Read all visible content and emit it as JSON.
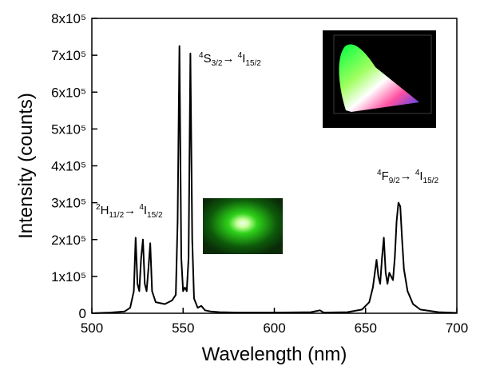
{
  "chart_data": {
    "type": "line",
    "x_label": "Wavelength (nm)",
    "y_label": "Intensity (counts)",
    "xlim": [
      500,
      700
    ],
    "xticks": [
      500,
      550,
      600,
      650,
      700
    ],
    "ylim": [
      0,
      800000
    ],
    "yticks": [
      0,
      {
        "value": 100000,
        "label": "1x10⁵"
      },
      {
        "value": 200000,
        "label": "2x10⁵"
      },
      {
        "value": 300000,
        "label": "3x10⁵"
      },
      {
        "value": 400000,
        "label": "4x10⁵"
      },
      {
        "value": 500000,
        "label": "5x10⁵"
      },
      {
        "value": 600000,
        "label": "6x10⁵"
      },
      {
        "value": 700000,
        "label": "7x10⁵"
      },
      {
        "value": 800000,
        "label": "8x10⁵"
      }
    ],
    "x": [
      500,
      510,
      518,
      521,
      523,
      524,
      525,
      526,
      527,
      528,
      529,
      530,
      531,
      532,
      533,
      535,
      540,
      544,
      546,
      547,
      548,
      549,
      550,
      551,
      552,
      553,
      554,
      555,
      556,
      558,
      560,
      562,
      565,
      570,
      580,
      600,
      620,
      625,
      627,
      640,
      648,
      652,
      654,
      656,
      657,
      658,
      659,
      660,
      661,
      662,
      663,
      664,
      665,
      666,
      667,
      668,
      669,
      670,
      671,
      673,
      676,
      680,
      690,
      700
    ],
    "series": [
      {
        "color": "#000000",
        "values": [
          0,
          2000,
          5000,
          15000,
          60000,
          205000,
          80000,
          60000,
          150000,
          200000,
          80000,
          60000,
          120000,
          190000,
          60000,
          30000,
          25000,
          35000,
          50000,
          250000,
          725000,
          150000,
          60000,
          70000,
          60000,
          150000,
          705000,
          200000,
          40000,
          15000,
          20000,
          8000,
          5000,
          3000,
          2000,
          2000,
          3000,
          8000,
          2000,
          3000,
          10000,
          30000,
          70000,
          145000,
          100000,
          80000,
          150000,
          205000,
          110000,
          80000,
          110000,
          100000,
          90000,
          150000,
          250000,
          300000,
          290000,
          200000,
          120000,
          60000,
          25000,
          10000,
          3000,
          1000
        ]
      }
    ],
    "annotations": [
      {
        "parts": [
          {
            "text": "2",
            "style": "sup"
          },
          {
            "text": "H",
            "style": "normal"
          },
          {
            "text": "11/2",
            "style": "sub"
          },
          {
            "text": "→ ",
            "style": "normal"
          },
          {
            "text": "4",
            "style": "sup"
          },
          {
            "text": "I",
            "style": "normal"
          },
          {
            "text": "15/2",
            "style": "sub"
          }
        ]
      },
      {
        "parts": [
          {
            "text": "4",
            "style": "sup"
          },
          {
            "text": "S",
            "style": "normal"
          },
          {
            "text": "3/2",
            "style": "sub"
          },
          {
            "text": "→ ",
            "style": "normal"
          },
          {
            "text": "4",
            "style": "sup"
          },
          {
            "text": "I",
            "style": "normal"
          },
          {
            "text": "15/2",
            "style": "sub"
          }
        ]
      },
      {
        "parts": [
          {
            "text": "4",
            "style": "sup"
          },
          {
            "text": "F",
            "style": "normal"
          },
          {
            "text": "9/2",
            "style": "sub"
          },
          {
            "text": "→ ",
            "style": "normal"
          },
          {
            "text": "4",
            "style": "sup"
          },
          {
            "text": "I",
            "style": "normal"
          },
          {
            "text": "15/2",
            "style": "sub"
          }
        ]
      }
    ]
  }
}
